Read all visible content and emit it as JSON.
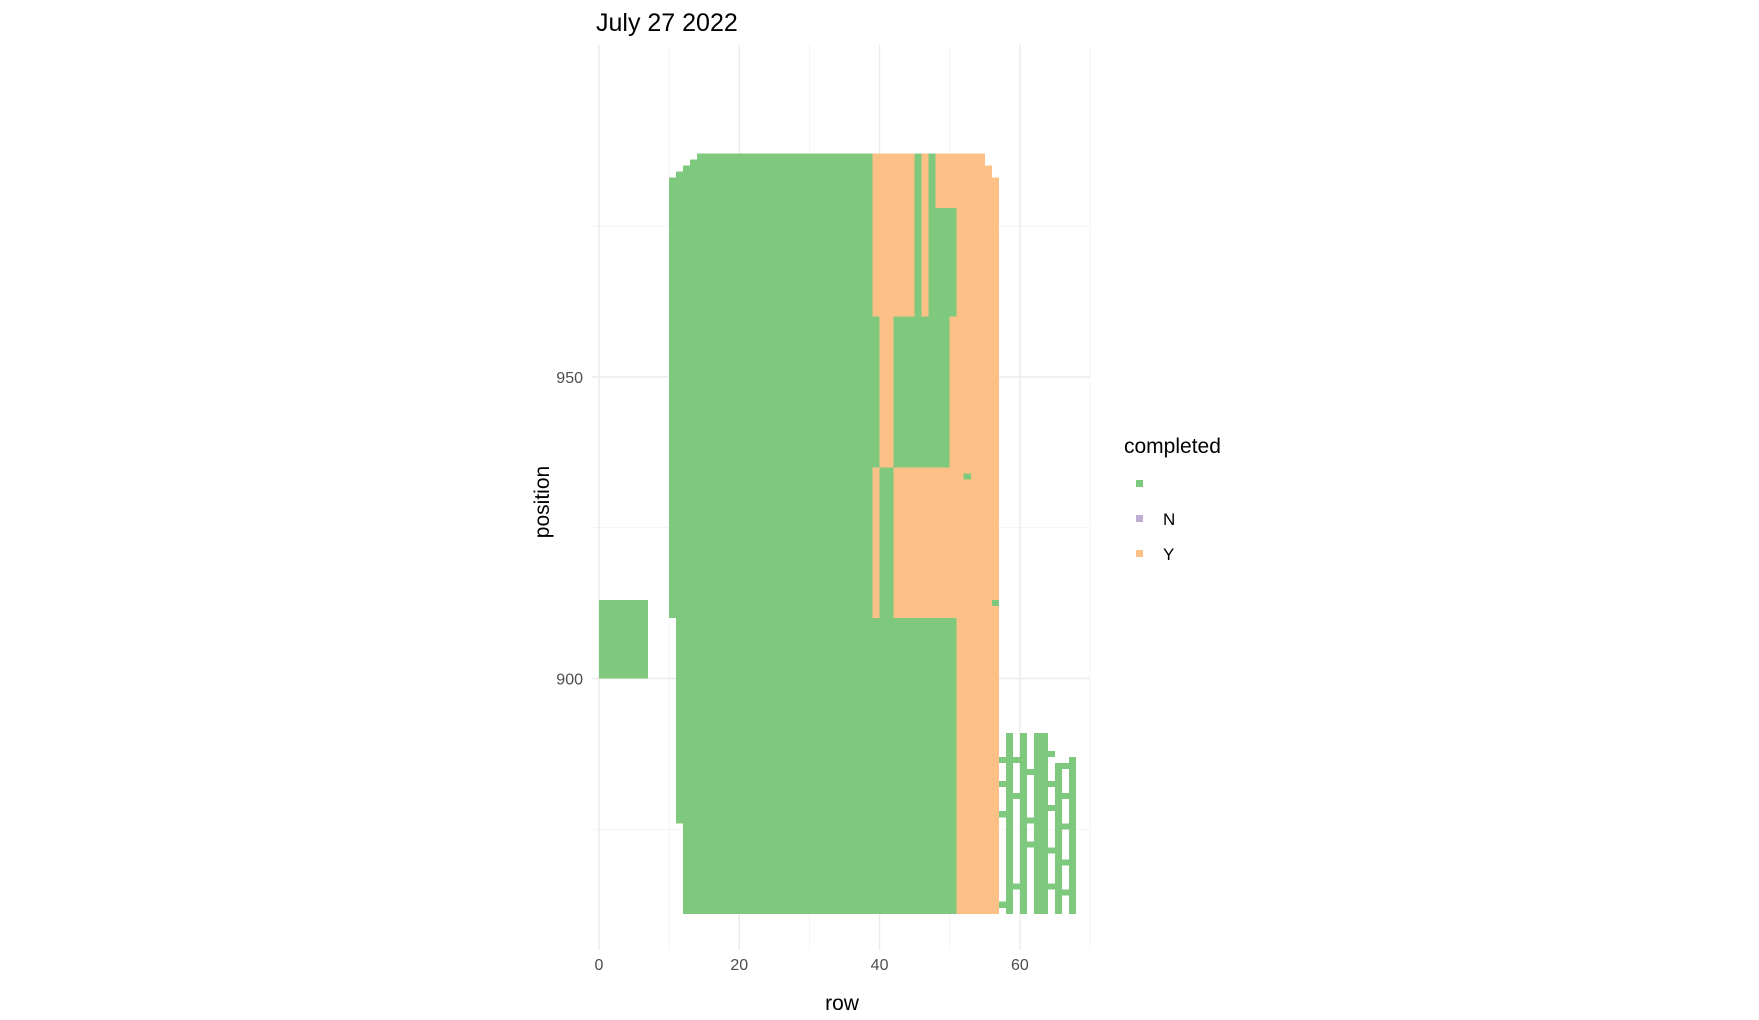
{
  "chart_data": {
    "type": "heatmap",
    "title": "July 27 2022",
    "xlabel": "row",
    "ylabel": "position",
    "xlim": [
      -1,
      70
    ],
    "ylim": [
      855,
      1005
    ],
    "x_ticks": [
      0,
      20,
      40,
      60
    ],
    "y_ticks": [
      900,
      950
    ],
    "grid": true,
    "legend": {
      "title": "completed",
      "position": "right",
      "entries": [
        {
          "label": "",
          "color": "#7fc97f"
        },
        {
          "label": "N",
          "color": "#beaed4"
        },
        {
          "label": "Y",
          "color": "#fdc086"
        }
      ]
    },
    "cells": [
      {
        "x0": 0,
        "x1": 7,
        "y0": 900,
        "y1": 913,
        "value": ""
      },
      {
        "x0": 10,
        "x1": 11,
        "y0": 910,
        "y1": 983,
        "value": ""
      },
      {
        "x0": 11,
        "x1": 12,
        "y0": 910,
        "y1": 984,
        "value": ""
      },
      {
        "x0": 12,
        "x1": 13,
        "y0": 910,
        "y1": 985,
        "value": ""
      },
      {
        "x0": 13,
        "x1": 14,
        "y0": 910,
        "y1": 986,
        "value": ""
      },
      {
        "x0": 14,
        "x1": 39,
        "y0": 910,
        "y1": 987,
        "value": ""
      },
      {
        "x0": 11,
        "x1": 51,
        "y0": 876,
        "y1": 910,
        "value": ""
      },
      {
        "x0": 12,
        "x1": 51,
        "y0": 861,
        "y1": 876,
        "value": ""
      },
      {
        "x0": 39,
        "x1": 40,
        "y0": 910,
        "y1": 935,
        "value": "Y"
      },
      {
        "x0": 40,
        "x1": 41,
        "y0": 935,
        "y1": 960,
        "value": "Y"
      },
      {
        "x0": 39,
        "x1": 41,
        "y0": 960,
        "y1": 987,
        "value": "Y"
      },
      {
        "x0": 40,
        "x1": 41,
        "y0": 910,
        "y1": 935,
        "value": ""
      },
      {
        "x0": 39,
        "x1": 40,
        "y0": 935,
        "y1": 960,
        "value": ""
      },
      {
        "x0": 41,
        "x1": 42,
        "y0": 910,
        "y1": 935,
        "value": ""
      },
      {
        "x0": 41,
        "x1": 42,
        "y0": 935,
        "y1": 960,
        "value": "Y"
      },
      {
        "x0": 42,
        "x1": 50,
        "y0": 935,
        "y1": 960,
        "value": ""
      },
      {
        "x0": 42,
        "x1": 51,
        "y0": 910,
        "y1": 935,
        "value": "Y"
      },
      {
        "x0": 41,
        "x1": 45,
        "y0": 960,
        "y1": 987,
        "value": "Y"
      },
      {
        "x0": 45,
        "x1": 46,
        "y0": 960,
        "y1": 987,
        "value": ""
      },
      {
        "x0": 46,
        "x1": 47,
        "y0": 965,
        "y1": 987,
        "value": "Y"
      },
      {
        "x0": 46,
        "x1": 47,
        "y0": 960,
        "y1": 965,
        "value": "Y"
      },
      {
        "x0": 47,
        "x1": 48,
        "y0": 960,
        "y1": 987,
        "value": ""
      },
      {
        "x0": 48,
        "x1": 51,
        "y0": 960,
        "y1": 978,
        "value": ""
      },
      {
        "x0": 48,
        "x1": 51,
        "y0": 978,
        "y1": 987,
        "value": "Y"
      },
      {
        "x0": 50,
        "x1": 51,
        "y0": 935,
        "y1": 960,
        "value": "Y"
      },
      {
        "x0": 51,
        "x1": 55,
        "y0": 861,
        "y1": 987,
        "value": "Y"
      },
      {
        "x0": 55,
        "x1": 56,
        "y0": 861,
        "y1": 985,
        "value": "Y"
      },
      {
        "x0": 56,
        "x1": 57,
        "y0": 861,
        "y1": 983,
        "value": "Y"
      },
      {
        "x0": 52,
        "x1": 53,
        "y0": 933,
        "y1": 934,
        "value": ""
      },
      {
        "x0": 56,
        "x1": 57,
        "y0": 912,
        "y1": 913,
        "value": ""
      },
      {
        "x0": 58,
        "x1": 59,
        "y0": 861,
        "y1": 891,
        "value": ""
      },
      {
        "x0": 60,
        "x1": 61,
        "y0": 861,
        "y1": 891,
        "value": ""
      },
      {
        "x0": 62,
        "x1": 63,
        "y0": 861,
        "y1": 891,
        "value": ""
      },
      {
        "x0": 63,
        "x1": 64,
        "y0": 861,
        "y1": 891,
        "value": ""
      },
      {
        "x0": 65,
        "x1": 66,
        "y0": 861,
        "y1": 886,
        "value": ""
      },
      {
        "x0": 67,
        "x1": 68,
        "y0": 861,
        "y1": 887,
        "value": ""
      },
      {
        "x0": 57,
        "x1": 58,
        "y0": 886,
        "y1": 887,
        "value": ""
      },
      {
        "x0": 57,
        "x1": 58,
        "y0": 882,
        "y1": 883,
        "value": ""
      },
      {
        "x0": 57,
        "x1": 58,
        "y0": 877,
        "y1": 878,
        "value": ""
      },
      {
        "x0": 57,
        "x1": 58,
        "y0": 862,
        "y1": 863,
        "value": ""
      },
      {
        "x0": 59,
        "x1": 60,
        "y0": 886,
        "y1": 887,
        "value": ""
      },
      {
        "x0": 59,
        "x1": 60,
        "y0": 880,
        "y1": 881,
        "value": ""
      },
      {
        "x0": 59,
        "x1": 60,
        "y0": 865,
        "y1": 866,
        "value": ""
      },
      {
        "x0": 61,
        "x1": 62,
        "y0": 884,
        "y1": 885,
        "value": ""
      },
      {
        "x0": 61,
        "x1": 62,
        "y0": 876,
        "y1": 877,
        "value": ""
      },
      {
        "x0": 61,
        "x1": 62,
        "y0": 872,
        "y1": 873,
        "value": ""
      },
      {
        "x0": 64,
        "x1": 65,
        "y0": 887,
        "y1": 888,
        "value": ""
      },
      {
        "x0": 64,
        "x1": 65,
        "y0": 882,
        "y1": 883,
        "value": ""
      },
      {
        "x0": 64,
        "x1": 65,
        "y0": 878,
        "y1": 879,
        "value": ""
      },
      {
        "x0": 64,
        "x1": 65,
        "y0": 871,
        "y1": 872,
        "value": ""
      },
      {
        "x0": 64,
        "x1": 65,
        "y0": 865,
        "y1": 866,
        "value": ""
      },
      {
        "x0": 66,
        "x1": 67,
        "y0": 885,
        "y1": 886,
        "value": ""
      },
      {
        "x0": 66,
        "x1": 67,
        "y0": 880,
        "y1": 881,
        "value": ""
      },
      {
        "x0": 66,
        "x1": 67,
        "y0": 875,
        "y1": 876,
        "value": ""
      },
      {
        "x0": 66,
        "x1": 67,
        "y0": 869,
        "y1": 870,
        "value": ""
      },
      {
        "x0": 66,
        "x1": 67,
        "y0": 864,
        "y1": 865,
        "value": ""
      }
    ]
  }
}
